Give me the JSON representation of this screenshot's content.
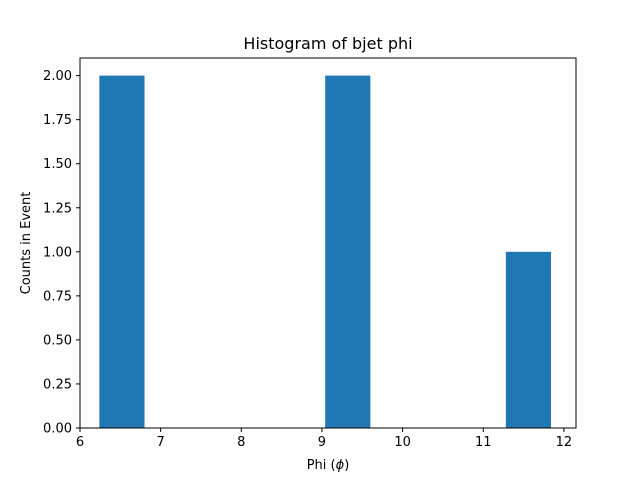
{
  "chart_data": {
    "type": "bar",
    "title": "Histogram of bjet phi",
    "xlabel": "Phi ($\\phi$)",
    "xlabel_parts": {
      "before": "Phi (",
      "symbol": "ϕ",
      "after": ")"
    },
    "ylabel": "Counts in Event",
    "xlim": [
      6.0,
      12.15
    ],
    "ylim": [
      0,
      2.1
    ],
    "xticks": [
      6,
      7,
      8,
      9,
      10,
      11,
      12
    ],
    "xtick_labels": [
      "6",
      "7",
      "8",
      "9",
      "10",
      "11",
      "12"
    ],
    "yticks": [
      0,
      0.25,
      0.5,
      0.75,
      1.0,
      1.25,
      1.5,
      1.75,
      2.0
    ],
    "ytick_labels": [
      "0.00",
      "0.25",
      "0.50",
      "0.75",
      "1.00",
      "1.25",
      "1.50",
      "1.75",
      "2.00"
    ],
    "bins": [
      {
        "x0": 6.24,
        "x1": 6.8,
        "count": 2
      },
      {
        "x0": 6.8,
        "x1": 7.36,
        "count": 0
      },
      {
        "x0": 7.36,
        "x1": 7.92,
        "count": 0
      },
      {
        "x0": 7.92,
        "x1": 8.48,
        "count": 0
      },
      {
        "x0": 8.48,
        "x1": 9.04,
        "count": 0
      },
      {
        "x0": 9.04,
        "x1": 9.6,
        "count": 2
      },
      {
        "x0": 9.6,
        "x1": 10.16,
        "count": 0
      },
      {
        "x0": 10.16,
        "x1": 10.72,
        "count": 0
      },
      {
        "x0": 10.72,
        "x1": 11.28,
        "count": 0
      },
      {
        "x0": 11.28,
        "x1": 11.84,
        "count": 1
      }
    ],
    "grid": false,
    "bar_color": "#1f77b4"
  }
}
